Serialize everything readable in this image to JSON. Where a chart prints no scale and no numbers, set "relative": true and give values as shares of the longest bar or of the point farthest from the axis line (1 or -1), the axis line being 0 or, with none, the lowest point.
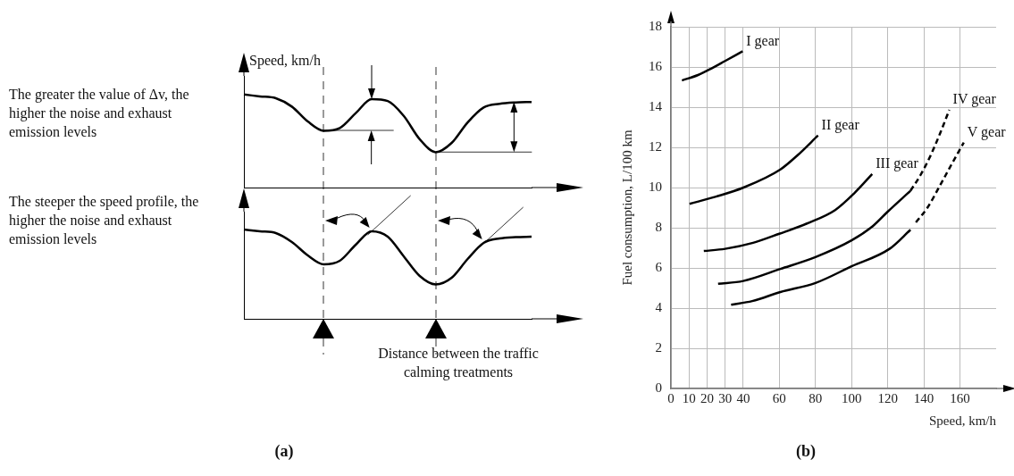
{
  "chart_data": [
    {
      "type": "line",
      "relative": true,
      "ylabel": "Speed, km/h",
      "marker": "none",
      "categories": [
        null,
        null,
        null,
        null,
        null,
        null,
        null,
        null,
        null,
        null,
        null,
        null,
        null,
        null,
        null,
        null,
        null,
        null,
        null
      ],
      "series": [
        {
          "color": "#000000",
          "values": [
            1.0,
            0.98,
            0.96,
            0.87,
            0.71,
            0.61,
            0.64,
            0.8,
            0.95,
            0.93,
            0.77,
            0.52,
            0.38,
            0.48,
            0.7,
            0.86,
            0.9,
            0.915,
            0.92
          ]
        }
      ],
      "annotations": [
        "The greater the value of Δv, the higher the noise and exhaust emission levels"
      ]
    },
    {
      "type": "line",
      "relative": true,
      "xlabel": "Distance between the traffic calming treatments",
      "marker": "none",
      "categories": [
        null,
        null,
        null,
        null,
        null,
        null,
        null,
        null,
        null,
        null,
        null,
        null,
        null,
        null,
        null,
        null,
        null,
        null,
        null
      ],
      "series": [
        {
          "color": "#000000",
          "values": [
            1.0,
            0.98,
            0.96,
            0.86,
            0.71,
            0.61,
            0.65,
            0.83,
            0.98,
            0.92,
            0.7,
            0.48,
            0.385,
            0.46,
            0.67,
            0.85,
            0.9,
            0.915,
            0.92
          ]
        }
      ],
      "annotations": [
        "The steeper the speed profile, the higher the noise and exhaust emission levels",
        "(a)"
      ]
    },
    {
      "type": "line",
      "xlabel": "Speed, km/h",
      "ylabel": "Fuel consumption, L/100 km",
      "grid": true,
      "marker": "none",
      "line_style": "solid",
      "xlim": [
        0,
        180
      ],
      "xticks": [
        0,
        10,
        20,
        30,
        40,
        60,
        80,
        100,
        120,
        140,
        160
      ],
      "ylim": [
        0,
        18
      ],
      "yticks": [
        0,
        2,
        4,
        6,
        8,
        10,
        12,
        14,
        16,
        18
      ],
      "series": [
        {
          "name": "I gear",
          "color": "#000000",
          "x": [
            6.1,
            15,
            22.7,
            30,
            39.7
          ],
          "values": [
            15.33,
            15.6,
            15.94,
            16.3,
            16.78
          ]
        },
        {
          "name": "II gear",
          "color": "#000000",
          "x": [
            10.3,
            25,
            40.2,
            60.6,
            70,
            81.4
          ],
          "values": [
            9.19,
            9.55,
            10.0,
            10.9,
            11.6,
            12.59
          ]
        },
        {
          "name": "III gear",
          "color": "#000000",
          "x": [
            18.2,
            30,
            45.5,
            60,
            75,
            90.9,
            101.5,
            111.4
          ],
          "values": [
            6.84,
            6.95,
            7.25,
            7.7,
            8.2,
            8.88,
            9.72,
            10.67
          ]
        },
        {
          "color": "#000000",
          "x": [
            26.1,
            40,
            60.6,
            80,
            100,
            112,
            120,
            132.6
          ],
          "values": [
            5.21,
            5.35,
            5.95,
            6.54,
            7.37,
            8.1,
            8.8,
            9.84
          ]
        },
        {
          "name": "IV gear",
          "color": "#000000",
          "line_style": "dashed",
          "x": [
            132.6,
            138,
            143.9,
            149,
            154.1
          ],
          "values": [
            9.84,
            10.6,
            11.63,
            12.7,
            13.87
          ]
        },
        {
          "color": "#000000",
          "x": [
            33.3,
            45,
            60.6,
            80,
            100,
            121,
            132.6
          ],
          "values": [
            4.17,
            4.35,
            4.8,
            5.25,
            6.08,
            6.95,
            7.9
          ]
        },
        {
          "name": "V gear",
          "color": "#000000",
          "line_style": "dashed",
          "x": [
            135.6,
            142,
            148.5,
            155,
            162.1
          ],
          "values": [
            8.27,
            9.0,
            10.03,
            11.1,
            12.24
          ]
        }
      ],
      "annotations": [
        "(b)"
      ]
    }
  ]
}
